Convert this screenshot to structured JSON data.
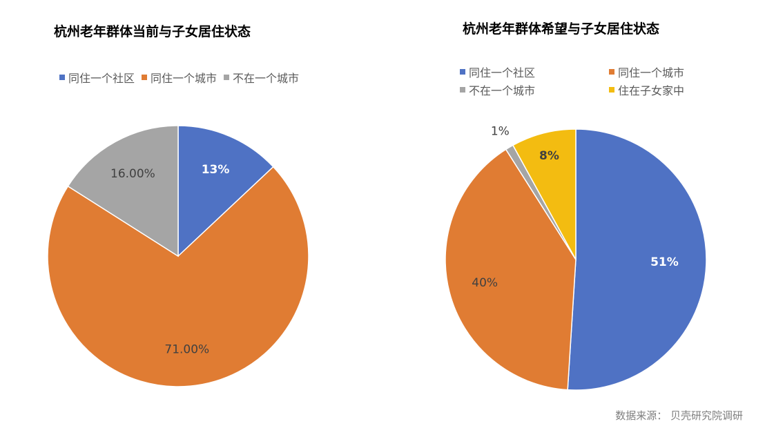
{
  "colors": {
    "blue": "#4F72C4",
    "orange": "#E07C33",
    "gray": "#A5A5A5",
    "yellow": "#F3BC11"
  },
  "source": "数据来源： 贝壳研究院调研",
  "chart_data": [
    {
      "type": "pie",
      "title": "杭州老年群体当前与子女居住状态",
      "legend_position": "top",
      "slices": [
        {
          "label": "同住一个社区",
          "value": 13,
          "display": "13%",
          "color": "#4F72C4",
          "label_color": "#ffffff",
          "label_bold": true
        },
        {
          "label": "同住一个城市",
          "value": 71,
          "display": "71.00%",
          "color": "#E07C33",
          "label_color": "#404040",
          "label_bold": false
        },
        {
          "label": "不在一个城市",
          "value": 16,
          "display": "16.00%",
          "color": "#A5A5A5",
          "label_color": "#404040",
          "label_bold": false
        }
      ]
    },
    {
      "type": "pie",
      "title": "杭州老年群体希望与子女居住状态",
      "legend_position": "top",
      "slices": [
        {
          "label": "同住一个社区",
          "value": 51,
          "display": "51%",
          "color": "#4F72C4",
          "label_color": "#ffffff",
          "label_bold": true
        },
        {
          "label": "同住一个城市",
          "value": 40,
          "display": "40%",
          "color": "#E07C33",
          "label_color": "#404040",
          "label_bold": false
        },
        {
          "label": "不在一个城市",
          "value": 1,
          "display": "1%",
          "color": "#A5A5A5",
          "label_color": "#404040",
          "label_bold": false
        },
        {
          "label": "住在子女家中",
          "value": 8,
          "display": "8%",
          "color": "#F3BC11",
          "label_color": "#404040",
          "label_bold": true
        }
      ]
    }
  ]
}
